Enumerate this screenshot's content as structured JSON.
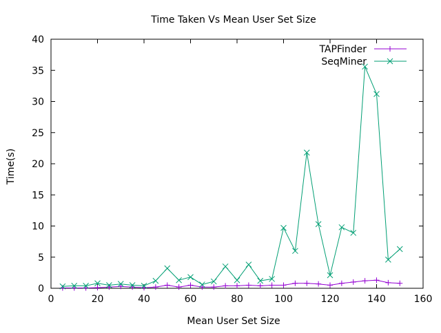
{
  "chart_data": {
    "type": "line",
    "title": "Time Taken Vs Mean User Set Size",
    "xlabel": "Mean User Set Size",
    "ylabel": "Time(s)",
    "xlim": [
      0,
      160
    ],
    "ylim": [
      0,
      40
    ],
    "xticks": [
      0,
      20,
      40,
      60,
      80,
      100,
      120,
      140,
      160
    ],
    "yticks": [
      0,
      5,
      10,
      15,
      20,
      25,
      30,
      35,
      40
    ],
    "grid": false,
    "legend_position": "top-right",
    "x": [
      5,
      10,
      15,
      20,
      25,
      30,
      35,
      40,
      45,
      50,
      55,
      60,
      65,
      70,
      75,
      80,
      85,
      90,
      95,
      100,
      105,
      110,
      115,
      120,
      125,
      130,
      135,
      140,
      145,
      150
    ],
    "series": [
      {
        "name": "TAPFinder",
        "color": "#9400d3",
        "marker": "plus",
        "values": [
          0.05,
          0.05,
          0.05,
          0.1,
          0.2,
          0.3,
          0.2,
          0.1,
          0.2,
          0.5,
          0.2,
          0.5,
          0.2,
          0.2,
          0.4,
          0.4,
          0.5,
          0.4,
          0.5,
          0.5,
          0.8,
          0.8,
          0.7,
          0.5,
          0.8,
          1.0,
          1.2,
          1.3,
          0.9,
          0.8
        ]
      },
      {
        "name": "SeqMiner",
        "color": "#009e73",
        "marker": "cross",
        "values": [
          0.3,
          0.4,
          0.4,
          0.8,
          0.5,
          0.7,
          0.5,
          0.4,
          1.2,
          3.2,
          1.3,
          1.8,
          0.6,
          1.1,
          3.5,
          1.3,
          3.8,
          1.2,
          1.5,
          9.7,
          6.0,
          21.8,
          10.3,
          2.1,
          9.8,
          8.9,
          35.6,
          31.2,
          4.6,
          6.3
        ]
      }
    ]
  }
}
